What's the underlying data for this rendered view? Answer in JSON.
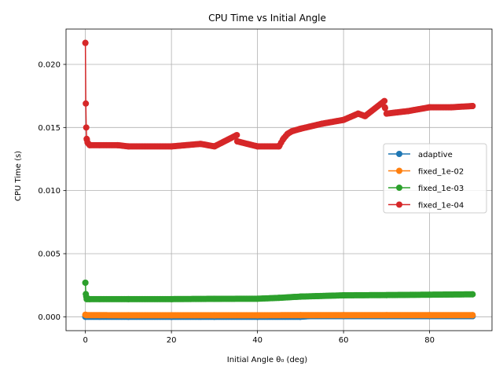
{
  "chart_data": {
    "type": "line",
    "title": "CPU Time vs Initial Angle",
    "xlabel": "Initial Angle θ₀ (deg)",
    "ylabel": "CPU Time (s)",
    "xlim": [
      -4.5,
      94.5
    ],
    "ylim": [
      -0.0011,
      0.0228
    ],
    "x_ticks": [
      0,
      20,
      40,
      60,
      80
    ],
    "y_ticks": [
      0.0,
      0.005,
      0.01,
      0.015,
      0.02
    ],
    "y_tick_labels": [
      "0.000",
      "0.005",
      "0.010",
      "0.015",
      "0.020"
    ],
    "grid": true,
    "marker": "circle",
    "legend_position": "center-right",
    "series": [
      {
        "name": "adaptive",
        "color": "#1f77b4",
        "x": [
          0,
          10,
          20,
          30,
          40,
          50,
          52,
          60,
          70,
          80,
          90
        ],
        "y": [
          0.0,
          0.0,
          0.0,
          0.0,
          0.0,
          0.0,
          5e-05,
          5e-05,
          5e-05,
          5e-05,
          5e-05
        ]
      },
      {
        "name": "fixed_1e-02",
        "color": "#ff7f0e",
        "x": [
          0,
          0.1,
          0.2,
          10,
          20,
          30,
          40,
          50,
          60,
          70,
          80,
          90
        ],
        "y": [
          0.00016,
          0.00014,
          0.00013,
          0.00012,
          0.00012,
          0.00012,
          0.00012,
          0.00013,
          0.00013,
          0.00013,
          0.00013,
          0.00013
        ]
      },
      {
        "name": "fixed_1e-03",
        "color": "#2ca02c",
        "x": [
          0,
          0.1,
          0.2,
          0.3,
          1,
          10,
          20,
          30,
          40,
          45,
          50,
          60,
          70,
          80,
          90
        ],
        "y": [
          0.0027,
          0.0018,
          0.0016,
          0.0014,
          0.0014,
          0.0014,
          0.0014,
          0.00142,
          0.00143,
          0.0015,
          0.0016,
          0.0017,
          0.00172,
          0.00175,
          0.00178
        ]
      },
      {
        "name": "fixed_1e-04",
        "color": "#d62728",
        "x": [
          0,
          0.1,
          0.2,
          0.3,
          0.5,
          1,
          7.5,
          10,
          20,
          26.8,
          30,
          35.2,
          35.3,
          40,
          45,
          46,
          47,
          48,
          50,
          55,
          60,
          63.4,
          65,
          69.5,
          69.6,
          70,
          75,
          80,
          85,
          90
        ],
        "y": [
          0.0217,
          0.0169,
          0.015,
          0.0141,
          0.0138,
          0.0136,
          0.0136,
          0.0135,
          0.0135,
          0.0137,
          0.0135,
          0.0144,
          0.0139,
          0.0135,
          0.0135,
          0.0141,
          0.0145,
          0.0147,
          0.0149,
          0.0153,
          0.0156,
          0.0161,
          0.0159,
          0.0171,
          0.0166,
          0.0161,
          0.0163,
          0.0166,
          0.0166,
          0.0167
        ]
      }
    ]
  }
}
